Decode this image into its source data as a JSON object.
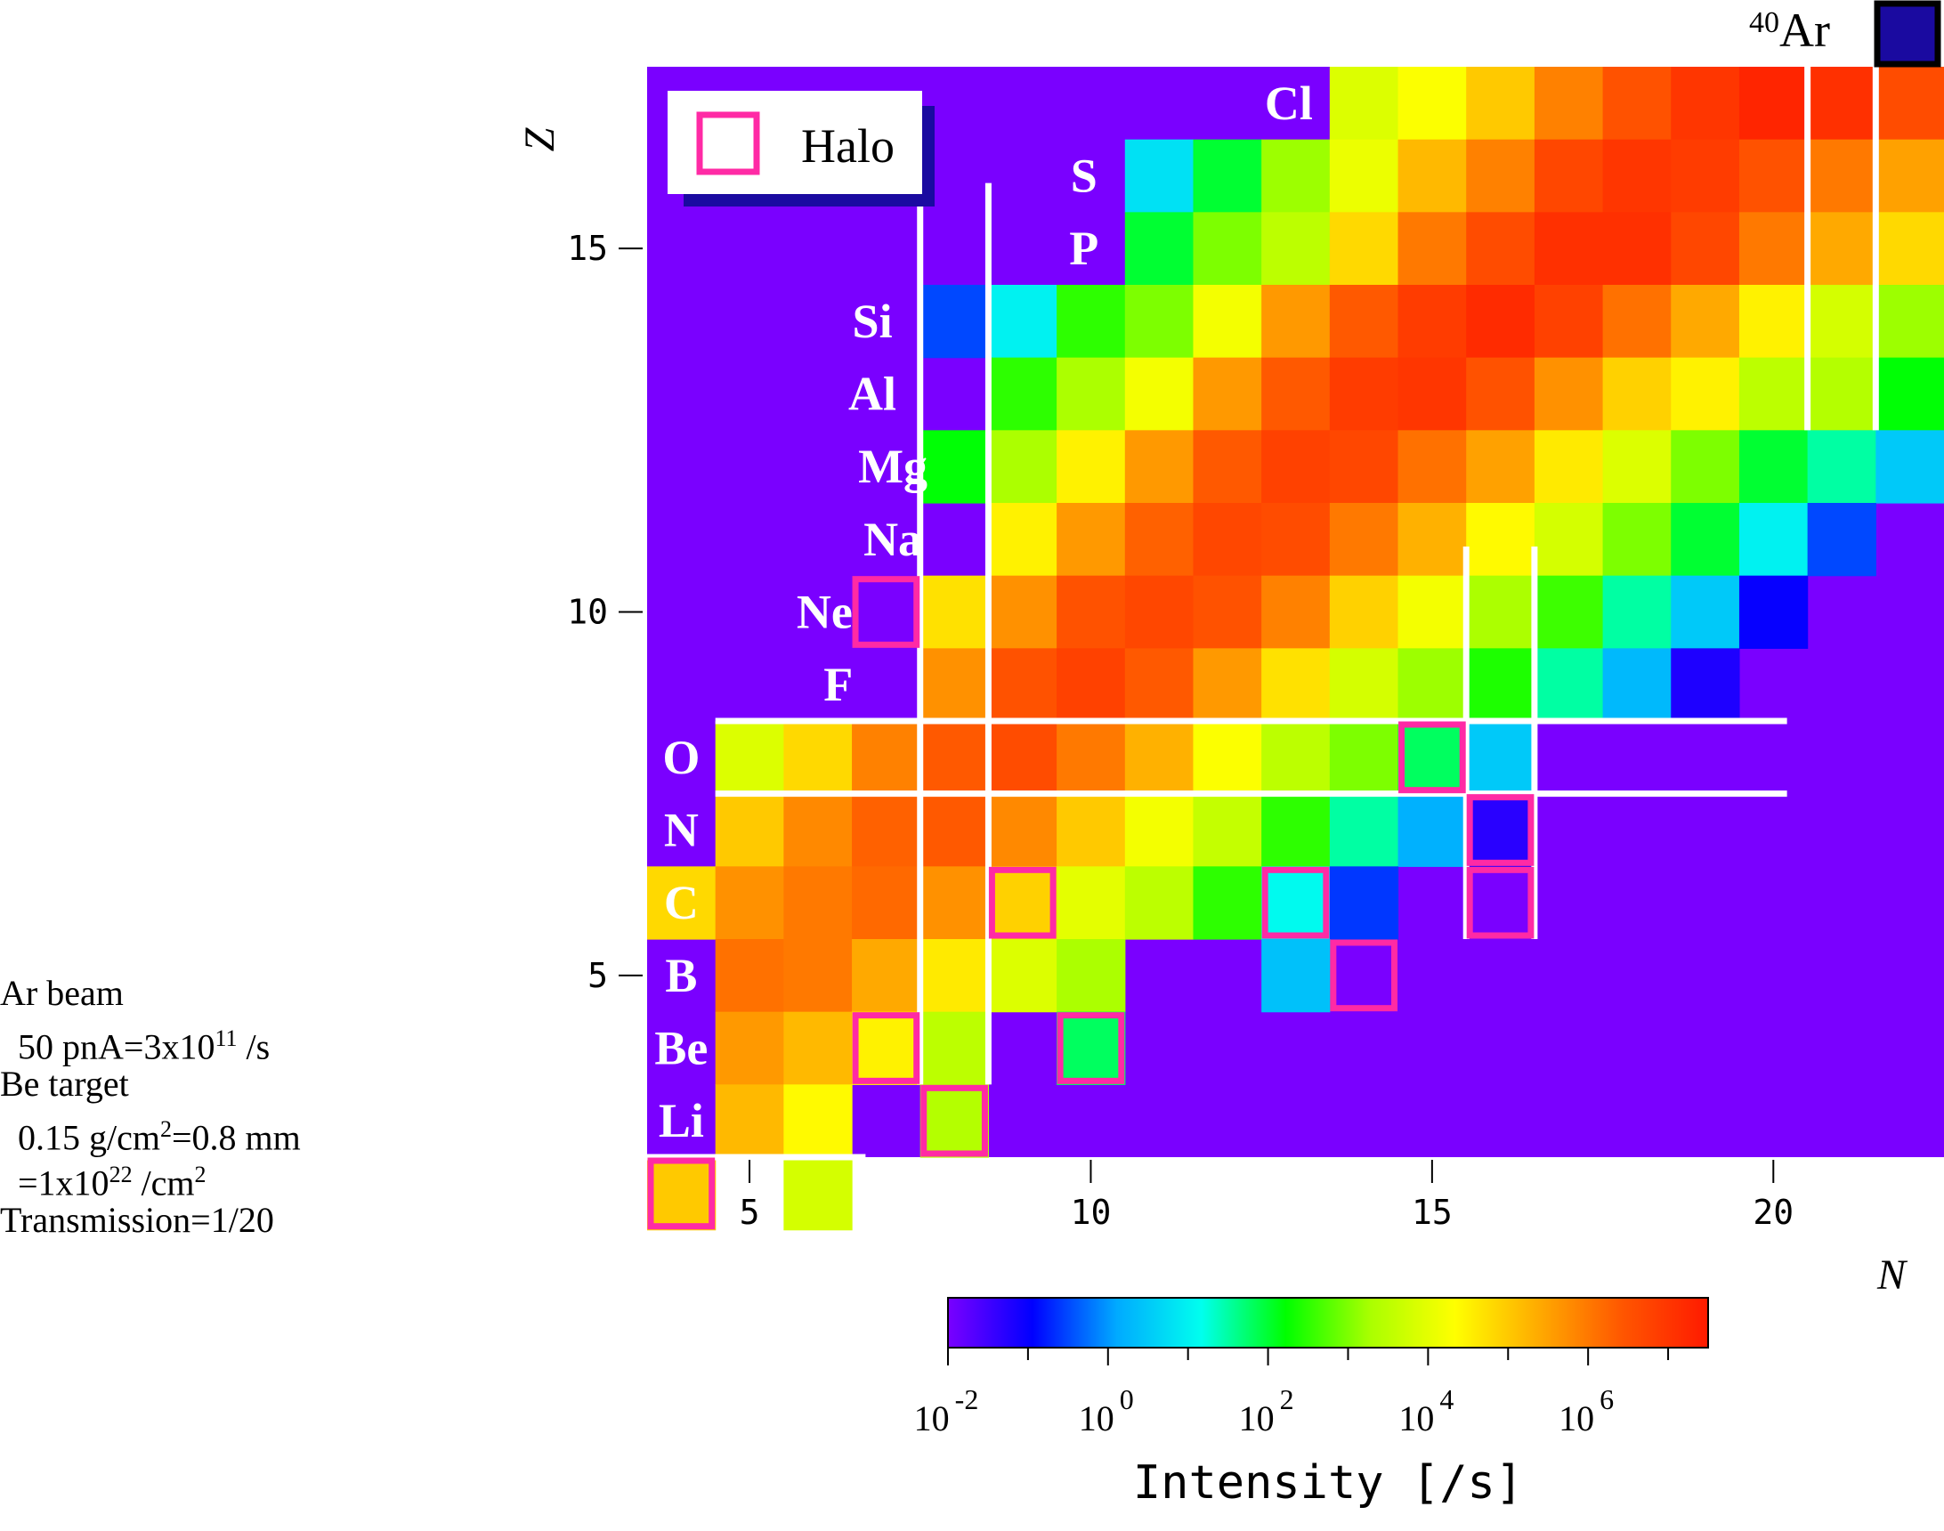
{
  "chart_data": {
    "type": "heatmap",
    "title": "",
    "xlabel": "N",
    "ylabel": "Z",
    "x_ticks": [
      5,
      10,
      15,
      20
    ],
    "y_ticks": [
      5,
      10,
      15
    ],
    "xlim": [
      3.5,
      22.5
    ],
    "ylim": [
      2.5,
      17.5
    ],
    "colorbar": {
      "label": "Intensity [/s]",
      "scale": "log",
      "range": [
        -2,
        7.5
      ],
      "tick_base": "10",
      "tick_exponents": [
        "-2",
        "0",
        "2",
        "4",
        "6"
      ],
      "colors": [
        "#7a00ff",
        "#0000ff",
        "#00aaff",
        "#00ffee",
        "#00ff00",
        "#aaff00",
        "#ffff00",
        "#ffaa00",
        "#ff5500",
        "#ff1a00"
      ]
    },
    "log_intensity_rows": [
      {
        "z": 17,
        "n_start": 14,
        "values": [
          3.9,
          4.3,
          5.0,
          5.9,
          6.5,
          7.0,
          7.3,
          7.1,
          6.6
        ]
      },
      {
        "z": 16,
        "n_start": 11,
        "values": [
          0.8,
          2.0,
          3.2,
          4.1,
          5.2,
          5.9,
          6.7,
          7.0,
          6.9,
          6.5,
          6.0,
          5.5
        ]
      },
      {
        "z": 15,
        "n_start": 11,
        "values": [
          2.0,
          3.0,
          3.5,
          4.8,
          6.0,
          6.6,
          7.1,
          7.1,
          6.7,
          6.0,
          5.4,
          4.8
        ]
      },
      {
        "z": 14,
        "n_start": 8,
        "values": [
          -0.5,
          1.0,
          2.5,
          3.0,
          4.2,
          5.6,
          6.4,
          6.9,
          7.2,
          6.8,
          6.1,
          5.4,
          4.5,
          3.8,
          3.2
        ]
      },
      {
        "z": 13,
        "n_start": 9,
        "values": [
          2.5,
          3.3,
          4.2,
          5.6,
          6.4,
          6.9,
          7.0,
          6.5,
          5.7,
          4.9,
          4.5,
          3.5,
          3.4,
          2.2
        ]
      },
      {
        "z": 12,
        "n_start": 8,
        "values": [
          2.2,
          3.3,
          4.5,
          5.6,
          6.4,
          6.8,
          6.7,
          6.1,
          5.5,
          4.6,
          3.9,
          3.0,
          2.0,
          1.5,
          0.5
        ]
      },
      {
        "z": 11,
        "n_start": 9,
        "values": [
          4.5,
          5.6,
          6.3,
          6.7,
          6.6,
          6.0,
          5.3,
          4.4,
          3.8,
          3.0,
          2.0,
          1.0,
          -0.5
        ]
      },
      {
        "z": 10,
        "n_start": 8,
        "values": [
          4.7,
          5.7,
          6.5,
          6.7,
          6.5,
          5.9,
          4.9,
          4.2,
          3.3,
          2.6,
          1.5,
          0.5,
          -1.0
        ]
      },
      {
        "z": 9,
        "n_start": 8,
        "values": [
          5.7,
          6.5,
          6.8,
          6.4,
          5.6,
          4.7,
          3.8,
          3.2,
          2.4,
          1.5,
          0.3,
          -1.2
        ]
      },
      {
        "z": 8,
        "n_start": 5,
        "values": [
          3.9,
          4.8,
          5.9,
          6.4,
          6.6,
          6.0,
          5.3,
          4.3,
          3.5,
          3.0,
          1.8,
          0.5
        ]
      },
      {
        "z": 7,
        "n_start": 5,
        "values": [
          5.0,
          5.8,
          6.3,
          6.4,
          5.8,
          5.0,
          4.2,
          3.6,
          2.5,
          1.5,
          0.2,
          -1.3
        ]
      },
      {
        "z": 6,
        "n_start": 4,
        "values": [
          4.8,
          5.7,
          6.0,
          6.2,
          5.7,
          4.9,
          4.0,
          3.5,
          2.5,
          1.1,
          -0.6
        ]
      },
      {
        "z": 5,
        "n_start": 5,
        "values": [
          6.1,
          6.0,
          5.4,
          4.6,
          3.9,
          3.3,
          null,
          null,
          0.4
        ]
      },
      {
        "z": 4,
        "n_start": 5,
        "values": [
          5.6,
          5.2,
          4.5,
          3.5,
          null,
          1.8
        ]
      },
      {
        "z": 3,
        "n_start": 5,
        "values": [
          5.2,
          4.4,
          null,
          3.4
        ]
      },
      {
        "z": 2,
        "n_start": 4,
        "values": [
          5.0,
          null,
          3.8
        ]
      }
    ],
    "background_log_intensity": -2,
    "halo_cells": [
      [
        7,
        10
      ],
      [
        4,
        2
      ],
      [
        8,
        3
      ],
      [
        7,
        4
      ],
      [
        10,
        4
      ],
      [
        9,
        6
      ],
      [
        13,
        6
      ],
      [
        14,
        5
      ],
      [
        15,
        8
      ],
      [
        16,
        7
      ],
      [
        16,
        6
      ]
    ],
    "element_labels": [
      {
        "symbol": "Li",
        "n": 4,
        "z": 3,
        "color": "#ffffff"
      },
      {
        "symbol": "Be",
        "n": 4,
        "z": 4,
        "color": "#ffffff"
      },
      {
        "symbol": "B",
        "n": 4,
        "z": 5,
        "color": "#ffffff"
      },
      {
        "symbol": "C",
        "n": 4,
        "z": 6,
        "color": "#ffffff"
      },
      {
        "symbol": "N",
        "n": 4,
        "z": 7,
        "color": "#ffffff"
      },
      {
        "symbol": "O",
        "n": 4,
        "z": 8,
        "color": "#ffffff"
      },
      {
        "symbol": "F",
        "n": 6.3,
        "z": 9,
        "color": "#ffffff"
      },
      {
        "symbol": "Ne",
        "n": 6.1,
        "z": 10,
        "color": "#ffffff"
      },
      {
        "symbol": "Na",
        "n": 7.1,
        "z": 11,
        "color": "#ffffff"
      },
      {
        "symbol": "Mg",
        "n": 7.1,
        "z": 12,
        "color": "#ffffff"
      },
      {
        "symbol": "Al",
        "n": 6.8,
        "z": 13,
        "color": "#ffffff"
      },
      {
        "symbol": "Si",
        "n": 6.8,
        "z": 14,
        "color": "#ffffff"
      },
      {
        "symbol": "P",
        "n": 9.9,
        "z": 15,
        "color": "#ffffff"
      },
      {
        "symbol": "S",
        "n": 9.9,
        "z": 16,
        "color": "#ffffff"
      },
      {
        "symbol": "Cl",
        "n": 12.9,
        "z": 17,
        "color": "#ffffff"
      }
    ],
    "magic_lines": [
      {
        "orient": "v",
        "at": 7.5,
        "from": 3.5,
        "to": 15.7
      },
      {
        "orient": "v",
        "at": 8.5,
        "from": 3.5,
        "to": 15.9
      },
      {
        "orient": "v",
        "at": 15.5,
        "from": 5.5,
        "to": 10.9
      },
      {
        "orient": "v",
        "at": 16.5,
        "from": 5.5,
        "to": 10.9
      },
      {
        "orient": "v",
        "at": 20.5,
        "from": 12.5,
        "to": 17.6
      },
      {
        "orient": "v",
        "at": 21.5,
        "from": 12.5,
        "to": 17.6
      },
      {
        "orient": "h",
        "at": 8.5,
        "from": 4.5,
        "to": 20.2
      },
      {
        "orient": "h",
        "at": 7.5,
        "from": 4.5,
        "to": 20.2
      },
      {
        "orient": "h",
        "at": 2.5,
        "from": 3.5,
        "to": 6.7
      }
    ],
    "legend": {
      "label": "Halo",
      "position": "top-left"
    },
    "primary_beam": {
      "mass": "40",
      "symbol": "Ar",
      "color": "#1a0aa0"
    }
  },
  "notes": [
    {
      "text": "Ar beam"
    },
    {
      "text": "  50 pnA=3x10",
      "sup": "11",
      "tail": " /s"
    },
    {
      "text": "Be target"
    },
    {
      "text": "  0.15 g/cm",
      "sup": "2",
      "tail": "=0.8 mm"
    },
    {
      "text": "  =1x10",
      "sup": "22",
      "tail": " /cm",
      "sup2": "2"
    },
    {
      "text": "Transmission=1/20"
    }
  ]
}
